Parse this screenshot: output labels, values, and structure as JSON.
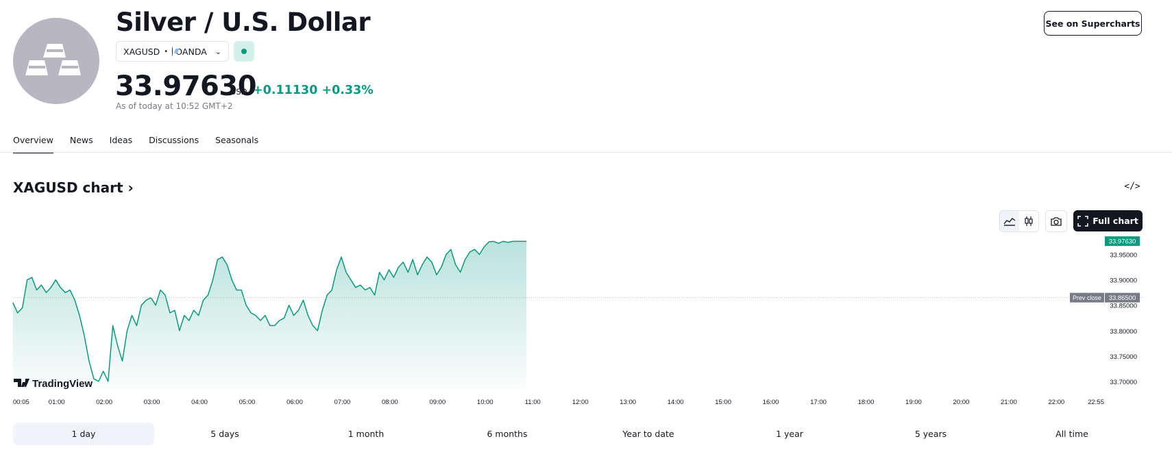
{
  "header": {
    "title": "Silver / U.S. Dollar",
    "symbol": "XAGUSD",
    "exchange": "OANDA",
    "price": "33.97630",
    "currency": "USD",
    "change": "+0.11130",
    "change_pct": "+0.33%",
    "as_of": "As of today at 10:52 GMT+2",
    "supercharts_label": "See on Supercharts",
    "status_color": "#089981"
  },
  "tabs": [
    {
      "label": "Overview",
      "active": true
    },
    {
      "label": "News"
    },
    {
      "label": "Ideas"
    },
    {
      "label": "Discussions"
    },
    {
      "label": "Seasonals"
    }
  ],
  "chart_section": {
    "title": "XAGUSD chart ›",
    "full_chart_label": "Full chart",
    "embed_icon": "code-icon",
    "camera_icon": "camera-icon",
    "area_icon": "area-chart-icon",
    "candles_icon": "candles-icon"
  },
  "chart_data": {
    "type": "area",
    "x_ticks": [
      "00:05",
      "01:00",
      "02:00",
      "03:00",
      "04:00",
      "05:00",
      "06:00",
      "07:00",
      "08:00",
      "09:00",
      "10:00",
      "11:00",
      "12:00",
      "13:00",
      "14:00",
      "15:00",
      "16:00",
      "17:00",
      "18:00",
      "19:00",
      "20:00",
      "21:00",
      "22:00",
      "22:55"
    ],
    "y_ticks": [
      "33.95000",
      "33.90000",
      "33.85000",
      "33.80000",
      "33.75000",
      "33.70000"
    ],
    "ylim": [
      33.685,
      33.99
    ],
    "xlim_hours": [
      0.0833,
      22.9167
    ],
    "last_price_label": "33.97630",
    "prev_close_text": "Prev close",
    "prev_close_label": "33.86500",
    "prev_close": 33.865,
    "line_color": "#089981",
    "brand": "TradingView",
    "series": [
      {
        "x": [
          0.08,
          0.18,
          0.28,
          0.38,
          0.48,
          0.58,
          0.68,
          0.78,
          0.88,
          0.98,
          1.08,
          1.18,
          1.28,
          1.38,
          1.48,
          1.58,
          1.68,
          1.78,
          1.88,
          1.98,
          2.08,
          2.18,
          2.28,
          2.38,
          2.48,
          2.58,
          2.68,
          2.78,
          2.88,
          2.98,
          3.08,
          3.18,
          3.28,
          3.38,
          3.48,
          3.58,
          3.68,
          3.78,
          3.88,
          3.98,
          4.08,
          4.18,
          4.28,
          4.38,
          4.48,
          4.58,
          4.68,
          4.78,
          4.88,
          4.98,
          5.08,
          5.18,
          5.28,
          5.38,
          5.48,
          5.58,
          5.68,
          5.78,
          5.88,
          5.98,
          6.08,
          6.18,
          6.28,
          6.38,
          6.48,
          6.58,
          6.68,
          6.78,
          6.88,
          6.98,
          7.08,
          7.18,
          7.28,
          7.38,
          7.48,
          7.58,
          7.68,
          7.78,
          7.88,
          7.98,
          8.08,
          8.18,
          8.28,
          8.38,
          8.48,
          8.58,
          8.68,
          8.78,
          8.88,
          8.98,
          9.08,
          9.18,
          9.28,
          9.38,
          9.48,
          9.58,
          9.68,
          9.78,
          9.88,
          9.98,
          10.08,
          10.18,
          10.28,
          10.38,
          10.48,
          10.58,
          10.68,
          10.78,
          10.87
        ],
        "y": [
          33.855,
          33.835,
          33.845,
          33.9,
          33.905,
          33.88,
          33.89,
          33.875,
          33.885,
          33.9,
          33.885,
          33.875,
          33.88,
          33.86,
          33.83,
          33.79,
          33.74,
          33.705,
          33.7,
          33.72,
          33.7,
          33.81,
          33.77,
          33.74,
          33.8,
          33.83,
          33.81,
          33.85,
          33.86,
          33.865,
          33.85,
          33.88,
          33.87,
          33.835,
          33.84,
          33.8,
          33.83,
          33.82,
          33.84,
          33.83,
          33.86,
          33.87,
          33.9,
          33.94,
          33.945,
          33.93,
          33.9,
          33.88,
          33.88,
          33.85,
          33.835,
          33.83,
          33.82,
          33.83,
          33.81,
          33.81,
          33.82,
          33.825,
          33.85,
          33.83,
          33.84,
          33.86,
          33.83,
          33.81,
          33.8,
          33.84,
          33.87,
          33.88,
          33.92,
          33.945,
          33.915,
          33.9,
          33.885,
          33.89,
          33.88,
          33.885,
          33.87,
          33.915,
          33.9,
          33.92,
          33.905,
          33.925,
          33.935,
          33.915,
          33.94,
          33.91,
          33.93,
          33.945,
          33.935,
          33.91,
          33.925,
          33.95,
          33.96,
          33.93,
          33.915,
          33.94,
          33.955,
          33.96,
          33.95,
          33.965,
          33.975,
          33.976,
          33.972,
          33.976,
          33.974,
          33.976,
          33.976,
          33.976,
          33.976
        ]
      }
    ]
  },
  "ranges": [
    {
      "label": "1 day",
      "active": true
    },
    {
      "label": "5 days"
    },
    {
      "label": "1 month"
    },
    {
      "label": "6 months"
    },
    {
      "label": "Year to date"
    },
    {
      "label": "1 year"
    },
    {
      "label": "5 years"
    },
    {
      "label": "All time"
    }
  ]
}
